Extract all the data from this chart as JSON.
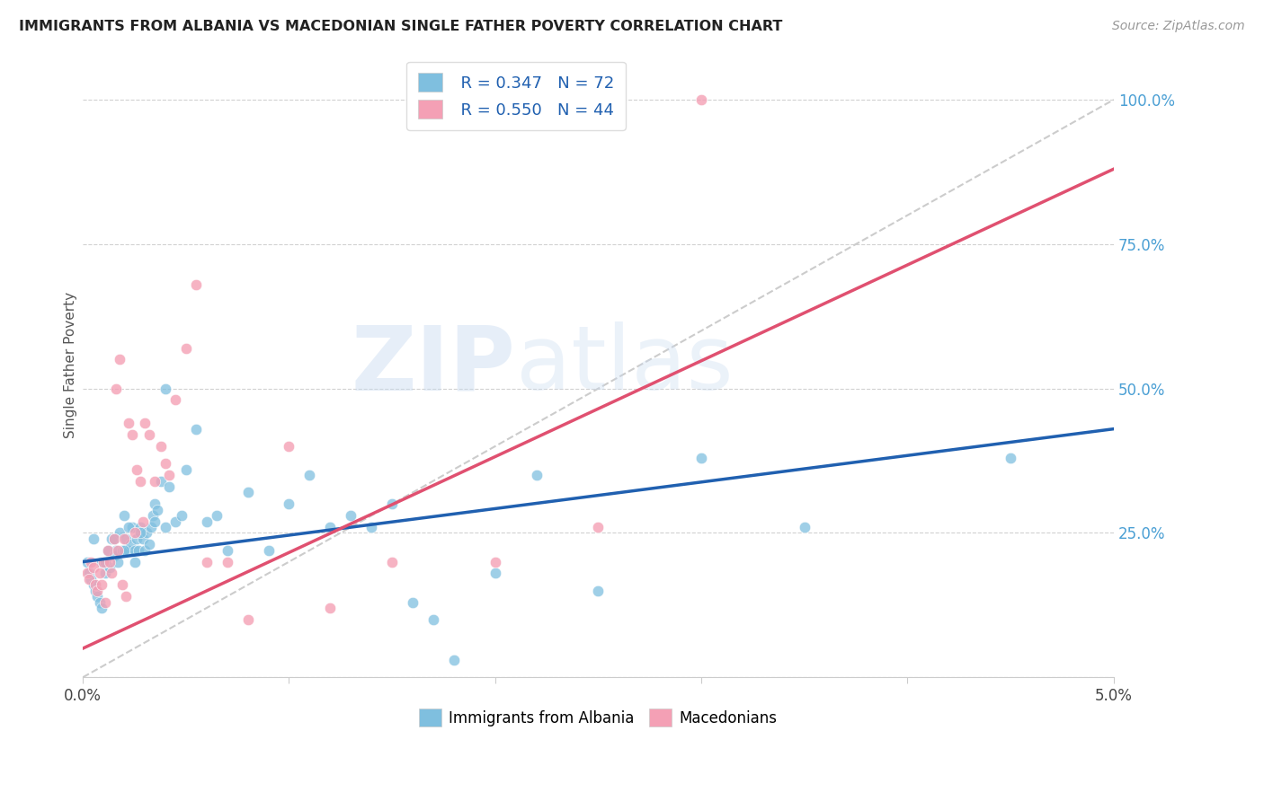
{
  "title": "IMMIGRANTS FROM ALBANIA VS MACEDONIAN SINGLE FATHER POVERTY CORRELATION CHART",
  "source": "Source: ZipAtlas.com",
  "ylabel": "Single Father Poverty",
  "xlim": [
    0.0,
    5.0
  ],
  "ylim": [
    0.0,
    108.0
  ],
  "color_albania": "#7fbfdf",
  "color_macedonian": "#f4a0b5",
  "color_albania_line": "#2060b0",
  "color_macedonian_line": "#e05070",
  "color_diagonal": "#cccccc",
  "watermark_zip": "ZIP",
  "watermark_atlas": "atlas",
  "albania_scatter_x": [
    0.02,
    0.03,
    0.04,
    0.05,
    0.06,
    0.07,
    0.08,
    0.09,
    0.1,
    0.11,
    0.12,
    0.13,
    0.14,
    0.15,
    0.16,
    0.17,
    0.18,
    0.19,
    0.2,
    0.21,
    0.22,
    0.23,
    0.24,
    0.25,
    0.26,
    0.27,
    0.28,
    0.29,
    0.3,
    0.31,
    0.32,
    0.33,
    0.34,
    0.35,
    0.36,
    0.38,
    0.4,
    0.42,
    0.45,
    0.48,
    0.5,
    0.55,
    0.6,
    0.65,
    0.7,
    0.8,
    0.9,
    1.0,
    1.1,
    1.2,
    1.3,
    1.4,
    1.5,
    1.6,
    1.7,
    1.8,
    2.0,
    2.2,
    2.5,
    3.0,
    3.5,
    4.5,
    0.05,
    0.09,
    0.11,
    0.15,
    0.2,
    0.22,
    0.25,
    0.28,
    0.35,
    0.4
  ],
  "albania_scatter_y": [
    20,
    18,
    17,
    16,
    15,
    14,
    13,
    12,
    20,
    18,
    22,
    19,
    24,
    21,
    22,
    20,
    25,
    22,
    28,
    24,
    22,
    23,
    26,
    22,
    24,
    22,
    26,
    24,
    22,
    25,
    23,
    26,
    28,
    30,
    29,
    34,
    26,
    33,
    27,
    28,
    36,
    43,
    27,
    28,
    22,
    32,
    22,
    30,
    35,
    26,
    28,
    26,
    30,
    13,
    10,
    3,
    18,
    35,
    15,
    38,
    26,
    38,
    24,
    20,
    20,
    24,
    22,
    26,
    20,
    25,
    27,
    50
  ],
  "macedonian_scatter_x": [
    0.02,
    0.03,
    0.04,
    0.05,
    0.06,
    0.07,
    0.08,
    0.09,
    0.1,
    0.11,
    0.12,
    0.13,
    0.14,
    0.15,
    0.16,
    0.17,
    0.18,
    0.19,
    0.2,
    0.21,
    0.22,
    0.24,
    0.26,
    0.28,
    0.3,
    0.32,
    0.35,
    0.38,
    0.4,
    0.42,
    0.45,
    0.5,
    0.55,
    0.6,
    0.7,
    0.8,
    1.0,
    1.2,
    1.5,
    2.0,
    2.5,
    3.0,
    0.25,
    0.29
  ],
  "macedonian_scatter_y": [
    18,
    17,
    20,
    19,
    16,
    15,
    18,
    16,
    20,
    13,
    22,
    20,
    18,
    24,
    50,
    22,
    55,
    16,
    24,
    14,
    44,
    42,
    36,
    34,
    44,
    42,
    34,
    40,
    37,
    35,
    48,
    57,
    68,
    20,
    20,
    10,
    40,
    12,
    20,
    20,
    26,
    100,
    25,
    27
  ],
  "albania_line_x": [
    0.0,
    5.0
  ],
  "albania_line_y": [
    20.0,
    43.0
  ],
  "macedonian_line_x": [
    0.0,
    5.0
  ],
  "macedonian_line_y": [
    5.0,
    88.0
  ],
  "diagonal_line_x": [
    0.0,
    5.0
  ],
  "diagonal_line_y": [
    0.0,
    100.0
  ],
  "yticks": [
    0,
    25,
    50,
    75,
    100
  ],
  "ytick_labels": [
    "25.0%",
    "50.0%",
    "75.0%",
    "100.0%"
  ],
  "xtick_labels_show": [
    "0.0%",
    "5.0%"
  ]
}
